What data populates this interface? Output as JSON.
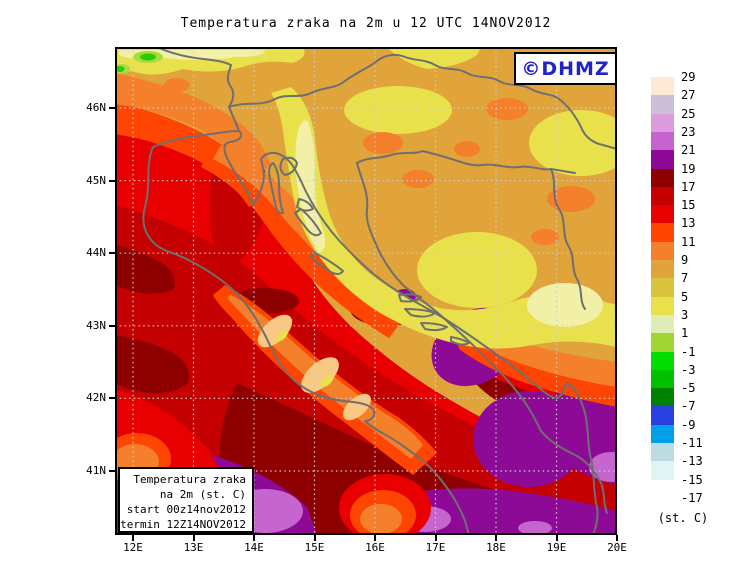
{
  "title": "Temperatura zraka na 2m u 12 UTC 14NOV2012",
  "watermark": {
    "text": "©DHMZ",
    "color": "#2222CC"
  },
  "legend_box": {
    "lines": [
      "Temperatura zraka",
      "na 2m (st. C)",
      "start 00z14nov2012",
      "termin 12Z14NOV2012"
    ]
  },
  "axes": {
    "lat_labels": [
      "46N",
      "45N",
      "44N",
      "43N",
      "42N",
      "41N"
    ],
    "lon_labels": [
      "12E",
      "13E",
      "14E",
      "15E",
      "16E",
      "17E",
      "18E",
      "19E",
      "20E"
    ]
  },
  "colorbar": {
    "unit": "(st. C)",
    "tick_labels": [
      "29",
      "27",
      "25",
      "23",
      "21",
      "19",
      "17",
      "15",
      "13",
      "11",
      "9",
      "7",
      "5",
      "3",
      "1",
      "-1",
      "-3",
      "-5",
      "-7",
      "-9",
      "-11",
      "-13",
      "-15",
      "-17"
    ],
    "cell_colors": [
      "#FCEAD4",
      "#CBC0D8",
      "#DB9CDB",
      "#C763CE",
      "#8C0A96",
      "#8E0000",
      "#C40000",
      "#E80000",
      "#FF4500",
      "#F4802C",
      "#E0A43A",
      "#D9C33C",
      "#E8E14B",
      "#DDEDB5",
      "#9FD636",
      "#00DC00",
      "#00C000",
      "#008000",
      "#2840E0",
      "#00A0E8",
      "#BCDCE4",
      "#E0F4F4",
      "#FFFFFF"
    ]
  },
  "map_colors": {
    "frame": "#000000",
    "coastline_border": "#6F6F6F",
    "graticule": "#CDCDCD",
    "field_amber_7_9": "#E0A43A",
    "field_yellow_3_5": "#E8E14B",
    "field_pale_1_3": "#F1F0A6",
    "field_orange_9_11": "#F4802C",
    "field_orangered_11_13": "#FF4502",
    "field_red_13_15": "#E80000",
    "field_darkred_15_17": "#C40000",
    "field_maroon_17_19": "#8E0000",
    "field_purple_19_21": "#8C0A96",
    "field_orchid_21_23": "#C765CE",
    "field_green_cold": "#2EC80A"
  }
}
